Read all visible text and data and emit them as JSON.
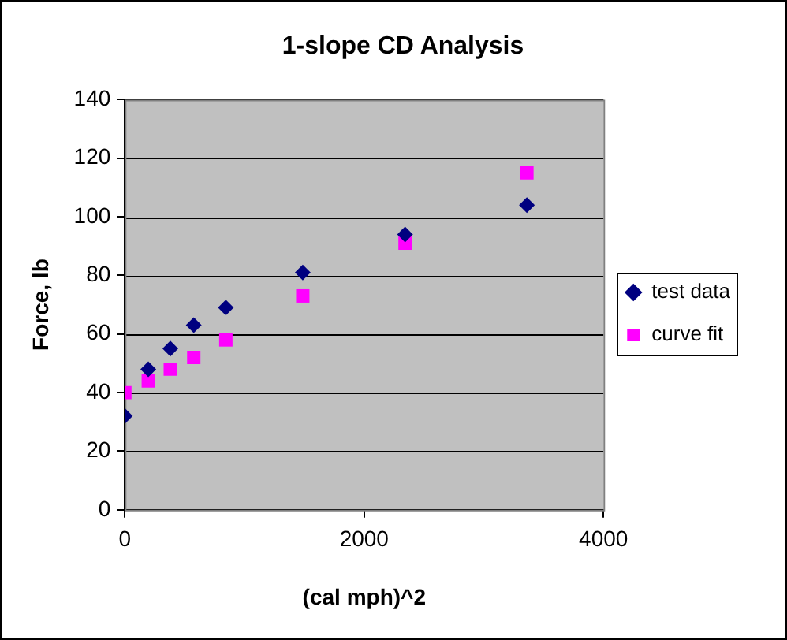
{
  "chart_data": {
    "type": "scatter",
    "title": "1-slope CD Analysis",
    "xlabel": "(cal mph)^2",
    "ylabel": "Force, lb",
    "series": [
      {
        "name": "test data",
        "color": "#000080",
        "marker": "diamond",
        "x": [
          0,
          196,
          380,
          576,
          844,
          1487,
          2342,
          3360
        ],
        "values": [
          32,
          48,
          55,
          63,
          69,
          81,
          94,
          104
        ]
      },
      {
        "name": "curve fit",
        "color": "#ff00ff",
        "marker": "square",
        "x": [
          0,
          196,
          380,
          576,
          844,
          1487,
          2342,
          3360
        ],
        "values": [
          40,
          44,
          48,
          52,
          58,
          73,
          91,
          115
        ]
      }
    ],
    "xlim": [
      0,
      4000
    ],
    "xticks": [
      0,
      2000,
      4000
    ],
    "ylim": [
      0,
      140
    ],
    "yticks": [
      0,
      20,
      40,
      60,
      80,
      100,
      120,
      140
    ],
    "grid": "y",
    "legend": "right"
  }
}
